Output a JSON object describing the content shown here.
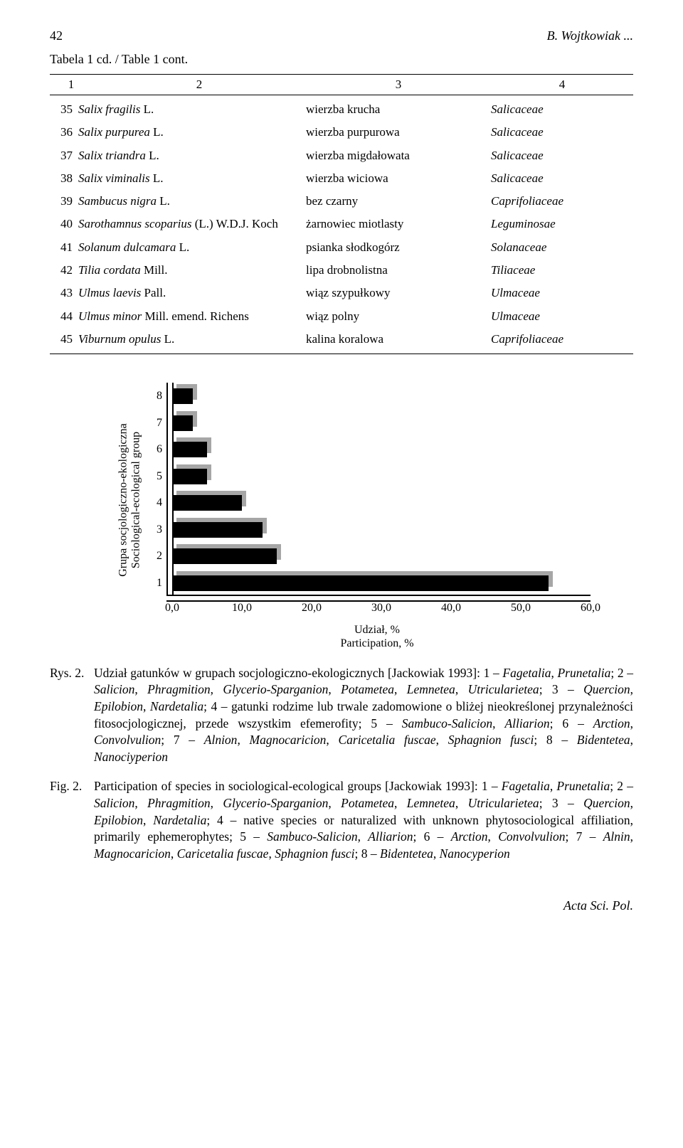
{
  "page_number": "42",
  "running_head": "B. Wojtkowiak ...",
  "table_caption": "Tabela 1 cd. / Table 1 cont.",
  "col_heads": [
    "1",
    "2",
    "3",
    "4"
  ],
  "rows": [
    {
      "n": "35",
      "sp": "Salix fragilis",
      "auth": "L.",
      "pl": "wierzba krucha",
      "fam": "Salicaceae"
    },
    {
      "n": "36",
      "sp": "Salix purpurea",
      "auth": "L.",
      "pl": "wierzba purpurowa",
      "fam": "Salicaceae"
    },
    {
      "n": "37",
      "sp": "Salix triandra",
      "auth": "L.",
      "pl": "wierzba migdałowata",
      "fam": "Salicaceae"
    },
    {
      "n": "38",
      "sp": "Salix viminalis",
      "auth": "L.",
      "pl": "wierzba wiciowa",
      "fam": "Salicaceae"
    },
    {
      "n": "39",
      "sp": "Sambucus nigra",
      "auth": "L.",
      "pl": "bez czarny",
      "fam": "Caprifoliaceae"
    },
    {
      "n": "40",
      "sp": "Sarothamnus scoparius",
      "auth": "(L.) W.D.J. Koch",
      "pl": "żarnowiec miotlasty",
      "fam": "Leguminosae"
    },
    {
      "n": "41",
      "sp": "Solanum dulcamara",
      "auth": "L.",
      "pl": "psianka słodkogórz",
      "fam": "Solanaceae"
    },
    {
      "n": "42",
      "sp": "Tilia cordata",
      "auth": "Mill.",
      "pl": "lipa drobnolistna",
      "fam": "Tiliaceae"
    },
    {
      "n": "43",
      "sp": "Ulmus laevis",
      "auth": "Pall.",
      "pl": "wiąz szypułkowy",
      "fam": "Ulmaceae"
    },
    {
      "n": "44",
      "sp": "Ulmus minor",
      "auth": "Mill. emend. Richens",
      "pl": "wiąz polny",
      "fam": "Ulmaceae"
    },
    {
      "n": "45",
      "sp": "Viburnum opulus",
      "auth": "L.",
      "pl": "kalina koralowa",
      "fam": "Caprifoliaceae"
    }
  ],
  "chart": {
    "type": "bar-horizontal",
    "y_categories": [
      "8",
      "7",
      "6",
      "5",
      "4",
      "3",
      "2",
      "1"
    ],
    "values": [
      3.0,
      3.0,
      5.0,
      5.0,
      10.0,
      13.0,
      15.0,
      54.0
    ],
    "xlim": [
      0,
      60
    ],
    "x_ticks": [
      "0,0",
      "10,0",
      "20,0",
      "30,0",
      "40,0",
      "50,0",
      "60,0"
    ],
    "bar_color": "#000000",
    "shadow_color": "#000000",
    "shadow_opacity": 0.35,
    "shadow_offset_x": 6,
    "shadow_offset_y": -6,
    "background": "#ffffff",
    "y_label_pl": "Grupa socjologiczno-ekologiczna",
    "y_label_en": "Sociological-ecological group",
    "x_label_pl": "Udział, %",
    "x_label_en": "Participation, %"
  },
  "caption_pl_tag": "Rys. 2.",
  "caption_pl": "Udział gatunków w grupach socjologiczno-ekologicznych [Jackowiak 1993]: 1 – Fagetalia, Prunetalia; 2 – Salicion, Phragmition, Glycerio-Sparganion, Potametea, Lemnetea, Utricularietea; 3 – Quercion, Epilobion, Nardetalia; 4 – gatunki rodzime lub trwale zadomowione o bliżej nieokreślonej przynależności fitosocjologicznej, przede wszystkim efemerofity; 5 – Sambuco-Salicion, Alliarion; 6 – Arction, Convolvulion; 7 – Alnion, Magnocaricion, Caricetalia fuscae, Sphagnion fusci; 8 – Bidentetea, Nanociyperion",
  "caption_en_tag": "Fig. 2.",
  "caption_en": "Participation of species in sociological-ecological groups [Jackowiak 1993]: 1 – Fagetalia, Prunetalia; 2 – Salicion, Phragmition, Glycerio-Sparganion, Potametea, Lemnetea, Utricularietea; 3 – Quercion, Epilobion, Nardetalia; 4 – native species or naturalized with unknown phytosociological affiliation, primarily ephemerophytes; 5 – Sambuco-Salicion, Alliarion; 6 – Arction, Convolvulion; 7 – Alnin, Magnocaricion, Caricetalia fuscae, Sphagnion fusci; 8 – Bidentetea, Nanocyperion",
  "footer": "Acta Sci. Pol."
}
